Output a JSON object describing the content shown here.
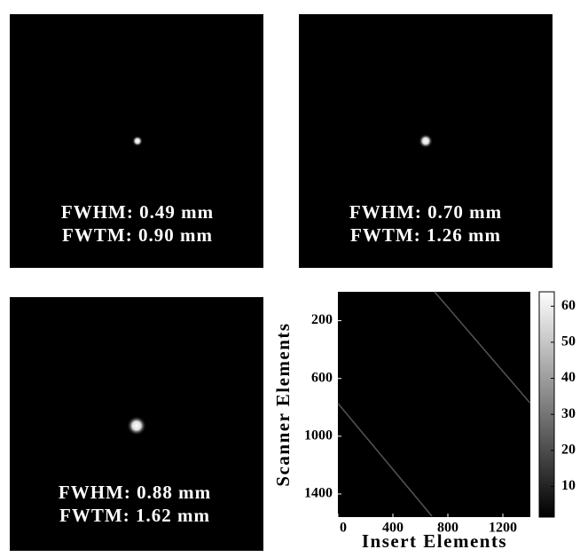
{
  "panels": [
    {
      "fwhm": "FWHM: 0.49 mm",
      "fwtm": "FWTM: 0.90 mm"
    },
    {
      "fwhm": "FWHM: 0.70 mm",
      "fwtm": "FWTM: 1.26 mm"
    },
    {
      "fwhm": "FWHM: 0.88 mm",
      "fwtm": "FWTM: 1.62 mm"
    }
  ],
  "chart_data": {
    "type": "heatmap",
    "xlabel": "Insert Elements",
    "ylabel": "Scanner Elements",
    "xlim": [
      0,
      1400
    ],
    "xticks": [
      0,
      400,
      800,
      1200
    ],
    "ylim": [
      0,
      1560
    ],
    "yticks": [
      200,
      600,
      1000,
      1400
    ],
    "y_reversed": true,
    "clim": [
      1.5,
      64
    ],
    "cticks": [
      10,
      20,
      30,
      40,
      50,
      60
    ],
    "series": [
      {
        "color": "#555555",
        "x": [
          703,
          1400
        ],
        "values": [
          0,
          772
        ]
      },
      {
        "color": "#555555",
        "x": [
          0,
          684
        ],
        "values": [
          772,
          1554
        ]
      }
    ]
  }
}
